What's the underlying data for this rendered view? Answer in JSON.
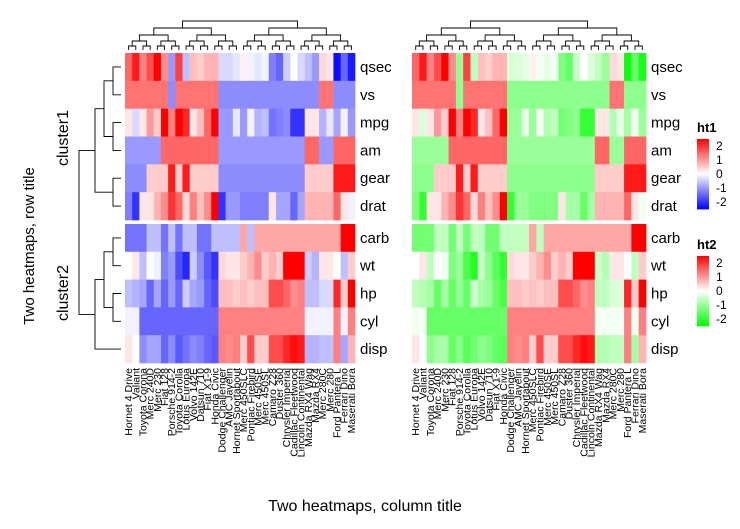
{
  "chart_data": {
    "type": "heatmap",
    "title": "",
    "row_title": "Two heatmaps, row title",
    "column_title": "Two heatmaps, column title",
    "row_title_color": "#e8212a",
    "row_clusters": [
      "cluster1",
      "cluster2"
    ],
    "row_labels": [
      "qsec",
      "vs",
      "mpg",
      "am",
      "gear",
      "drat",
      "carb",
      "wt",
      "hp",
      "cyl",
      "disp"
    ],
    "row_cluster_index": [
      0,
      0,
      0,
      0,
      0,
      0,
      1,
      1,
      1,
      1,
      1
    ],
    "column_labels": [
      "Hornet 4 Drive",
      "Valiant",
      "Toyota Corona",
      "Merc 240D",
      "Merc 230",
      "Fiat 128",
      "Porsche 914-2",
      "Toyota Corolla",
      "Lotus Europa",
      "Volvo 142E",
      "Datsun 710",
      "Fiat X1-9",
      "Honda Civic",
      "Dodge Challenger",
      "AMC Javelin",
      "Hornet Sportabout",
      "Merc 450SLC",
      "Pontiac Firebird",
      "Merc 450SE",
      "Merc 450SL",
      "Camaro Z28",
      "Duster 360",
      "Chrysler Imperial",
      "Cadillac Fleetwood",
      "Lincoln Continental",
      "Mazda RX4 Wag",
      "Mazda RX4",
      "Merc 280C",
      "Merc 280",
      "Ford Pantera L",
      "Ferrari Dino",
      "Maserati Bora"
    ],
    "values": [
      [
        1.2,
        1.8,
        1.0,
        1.4,
        2.6,
        0.9,
        -0.8,
        1.5,
        -0.5,
        0.5,
        0.4,
        0.6,
        0.6,
        -0.3,
        -0.3,
        -0.2,
        0.1,
        -0.1,
        -0.2,
        -0.1,
        -1.0,
        -1.2,
        -0.4,
        0.0,
        -0.3,
        -0.5,
        -0.8,
        0.3,
        0.2,
        -1.9,
        -1.2,
        -1.8
      ],
      [
        1.1,
        1.1,
        1.1,
        1.1,
        1.1,
        1.1,
        -0.9,
        1.1,
        1.1,
        1.1,
        1.1,
        1.1,
        1.1,
        -0.9,
        -0.9,
        -0.9,
        -0.9,
        -0.9,
        -0.9,
        -0.9,
        -0.9,
        -0.9,
        -0.9,
        -0.9,
        -0.9,
        -0.9,
        -0.9,
        1.1,
        1.1,
        -0.9,
        -0.9,
        -0.9
      ],
      [
        0.2,
        -0.3,
        0.2,
        0.8,
        0.4,
        2.3,
        1.0,
        2.3,
        1.7,
        0.2,
        0.5,
        1.2,
        2.0,
        -0.8,
        -0.8,
        -0.2,
        -0.8,
        -0.1,
        -0.6,
        -0.5,
        -1.1,
        -1.0,
        -0.9,
        -1.6,
        -1.6,
        0.2,
        0.2,
        -0.6,
        -0.2,
        -0.7,
        -0.1,
        -0.8
      ],
      [
        -0.8,
        -0.8,
        -0.8,
        -0.8,
        -0.8,
        1.2,
        1.2,
        1.2,
        1.2,
        1.2,
        1.2,
        1.2,
        1.2,
        -0.8,
        -0.8,
        -0.8,
        -0.8,
        -0.8,
        -0.8,
        -0.8,
        -0.8,
        -0.8,
        -0.8,
        -0.8,
        -0.8,
        1.2,
        1.2,
        -0.8,
        -0.8,
        1.2,
        1.2,
        1.2
      ],
      [
        -0.9,
        -0.9,
        -0.9,
        0.4,
        0.4,
        0.4,
        1.8,
        0.4,
        1.8,
        0.4,
        0.4,
        0.4,
        0.4,
        -0.9,
        -0.9,
        -0.9,
        -0.9,
        -0.9,
        -0.9,
        -0.9,
        -0.9,
        -0.9,
        -0.9,
        -0.9,
        -0.9,
        0.4,
        0.4,
        0.4,
        0.4,
        1.8,
        1.8,
        1.8
      ],
      [
        -1.0,
        -1.6,
        0.2,
        0.2,
        0.6,
        0.9,
        1.6,
        1.2,
        0.3,
        1.0,
        0.5,
        0.9,
        2.5,
        -1.6,
        -0.8,
        -0.8,
        -1.0,
        -1.0,
        -1.0,
        -1.0,
        0.2,
        -0.7,
        -0.7,
        -1.2,
        -0.7,
        0.6,
        0.6,
        0.6,
        0.6,
        1.2,
        0.2,
        -0.1
      ],
      [
        -1.1,
        -1.1,
        -1.1,
        -0.5,
        -0.5,
        -1.1,
        -0.5,
        -1.1,
        -0.5,
        -0.5,
        -1.1,
        -1.1,
        -0.5,
        -0.5,
        -0.5,
        -0.5,
        0.7,
        -0.5,
        0.7,
        0.7,
        0.7,
        0.7,
        0.7,
        0.7,
        0.7,
        0.7,
        0.7,
        0.7,
        0.7,
        0.7,
        2.0,
        3.2
      ],
      [
        -0.0,
        0.2,
        -0.5,
        -0.0,
        -0.1,
        -1.0,
        -0.8,
        -1.4,
        -1.7,
        -0.4,
        -0.9,
        -1.3,
        -1.6,
        0.3,
        0.2,
        0.2,
        0.4,
        0.6,
        0.9,
        0.4,
        0.6,
        0.4,
        2.2,
        2.1,
        2.3,
        -0.4,
        -0.6,
        0.2,
        0.2,
        -0.0,
        -0.5,
        0.4
      ],
      [
        -0.5,
        -0.6,
        -0.7,
        -1.2,
        -0.7,
        -1.2,
        -0.8,
        -1.2,
        -0.4,
        -0.7,
        -0.8,
        -1.2,
        -1.4,
        0.5,
        0.5,
        0.4,
        0.5,
        0.4,
        0.5,
        0.5,
        1.4,
        1.4,
        1.2,
        0.9,
        1.0,
        -0.5,
        -0.5,
        -0.3,
        -0.3,
        1.7,
        0.4,
        2.7
      ],
      [
        -0.1,
        -0.1,
        -1.2,
        -1.2,
        -1.2,
        -1.2,
        -1.2,
        -1.2,
        -1.2,
        -1.2,
        -1.2,
        -1.2,
        -1.2,
        1.0,
        1.0,
        1.0,
        1.0,
        1.0,
        1.0,
        1.0,
        1.0,
        1.0,
        1.0,
        1.0,
        1.0,
        -0.1,
        -0.1,
        -0.1,
        -0.1,
        1.0,
        -0.1,
        1.0
      ],
      [
        0.2,
        -0.0,
        -0.9,
        -0.7,
        -0.7,
        -1.2,
        -0.9,
        -1.3,
        -1.1,
        -0.9,
        -1.0,
        -1.2,
        -1.3,
        1.0,
        0.9,
        1.0,
        0.4,
        1.4,
        0.4,
        0.4,
        1.4,
        1.4,
        1.7,
        1.9,
        1.8,
        -0.6,
        -0.6,
        -0.5,
        -0.5,
        1.0,
        -0.7,
        0.6
      ]
    ],
    "heatmaps": [
      {
        "name": "ht1",
        "legend_title": "ht1",
        "legend_ticks": [
          "2",
          "1",
          "0",
          "-1",
          "-2"
        ],
        "high_color": "#ff0000",
        "mid_color": "#ffffff",
        "low_color": "#0000ff"
      },
      {
        "name": "ht2",
        "legend_title": "ht2",
        "legend_ticks": [
          "2",
          "1",
          "0",
          "-1",
          "-2"
        ],
        "high_color": "#ff0000",
        "mid_color": "#ffffff",
        "low_color": "#00ff00"
      }
    ],
    "color_range": [
      -2,
      2
    ],
    "legend_position": "right"
  }
}
